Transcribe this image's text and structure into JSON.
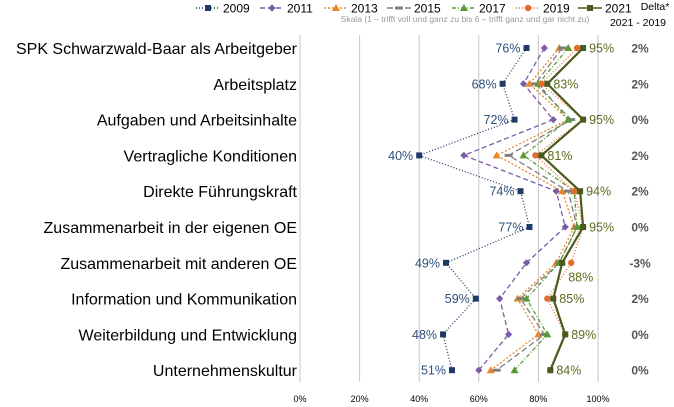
{
  "chart_data": {
    "type": "line",
    "orientation": "horizontal-profile",
    "scale_note": "Skala (1 – trifft voll und ganz zu bis 6 – trifft ganz und gar nicht zu)",
    "delta_header": "Delta*",
    "delta_period": "2021 - 2019",
    "categories": [
      "SPK Schwarzwald-Baar als Arbeitgeber",
      "Arbeitsplatz",
      "Aufgaben und Arbeitsinhalte",
      "Vertragliche Konditionen",
      "Direkte Führungskraft",
      "Zusammenarbeit in der eigenen OE",
      "Zusammenarbeit mit anderen OE",
      "Information und Kommunikation",
      "Weiterbildung und Entwicklung",
      "Unternehmenskultur"
    ],
    "xlim": [
      0,
      100
    ],
    "xticks": [
      "0%",
      "20%",
      "40%",
      "60%",
      "80%",
      "100%"
    ],
    "grid": true,
    "legend_position": "top",
    "series": [
      {
        "name": "2009",
        "color": "#1f3a68",
        "dash": "1,2",
        "marker": "square",
        "values": [
          76,
          68,
          72,
          40,
          74,
          77,
          49,
          59,
          48,
          51
        ]
      },
      {
        "name": "2011",
        "color": "#7b5aa6",
        "dash": "5,3",
        "marker": "diamond",
        "values": [
          82,
          75,
          85,
          55,
          86,
          89,
          76,
          67,
          70,
          60
        ]
      },
      {
        "name": "2013",
        "color": "#e8862a",
        "dash": "2,2",
        "marker": "triangle",
        "values": [
          87,
          77,
          90,
          66,
          88,
          92,
          86,
          73,
          80,
          64
        ]
      },
      {
        "name": "2015",
        "color": "#7f7f7f",
        "dash": "6,3",
        "marker": "dash",
        "values": [
          88,
          79,
          91,
          70,
          90,
          93,
          87,
          74,
          82,
          66
        ]
      },
      {
        "name": "2017",
        "color": "#5a9a32",
        "dash": "4,2,1,2",
        "marker": "triangle",
        "values": [
          90,
          80,
          90,
          75,
          92,
          93,
          87,
          76,
          83,
          72
        ]
      },
      {
        "name": "2019",
        "color": "#e36c2a",
        "dash": "1,2",
        "marker": "circle",
        "values": [
          93,
          81,
          95,
          79,
          92,
          95,
          91,
          83,
          89,
          84
        ]
      },
      {
        "name": "2021",
        "color": "#4b5a1e",
        "dash": "",
        "marker": "square",
        "values": [
          95,
          83,
          95,
          81,
          94,
          95,
          88,
          85,
          89,
          84
        ]
      }
    ],
    "labels_2009": [
      "76%",
      "68%",
      "72%",
      "40%",
      "74%",
      "77%",
      "49%",
      "59%",
      "48%",
      "51%"
    ],
    "labels_2021": [
      "95%",
      "83%",
      "95%",
      "81%",
      "94%",
      "95%",
      "88%",
      "85%",
      "89%",
      "84%"
    ],
    "deltas": [
      "2%",
      "2%",
      "0%",
      "2%",
      "2%",
      "0%",
      "-3%",
      "2%",
      "0%",
      "0%"
    ]
  }
}
